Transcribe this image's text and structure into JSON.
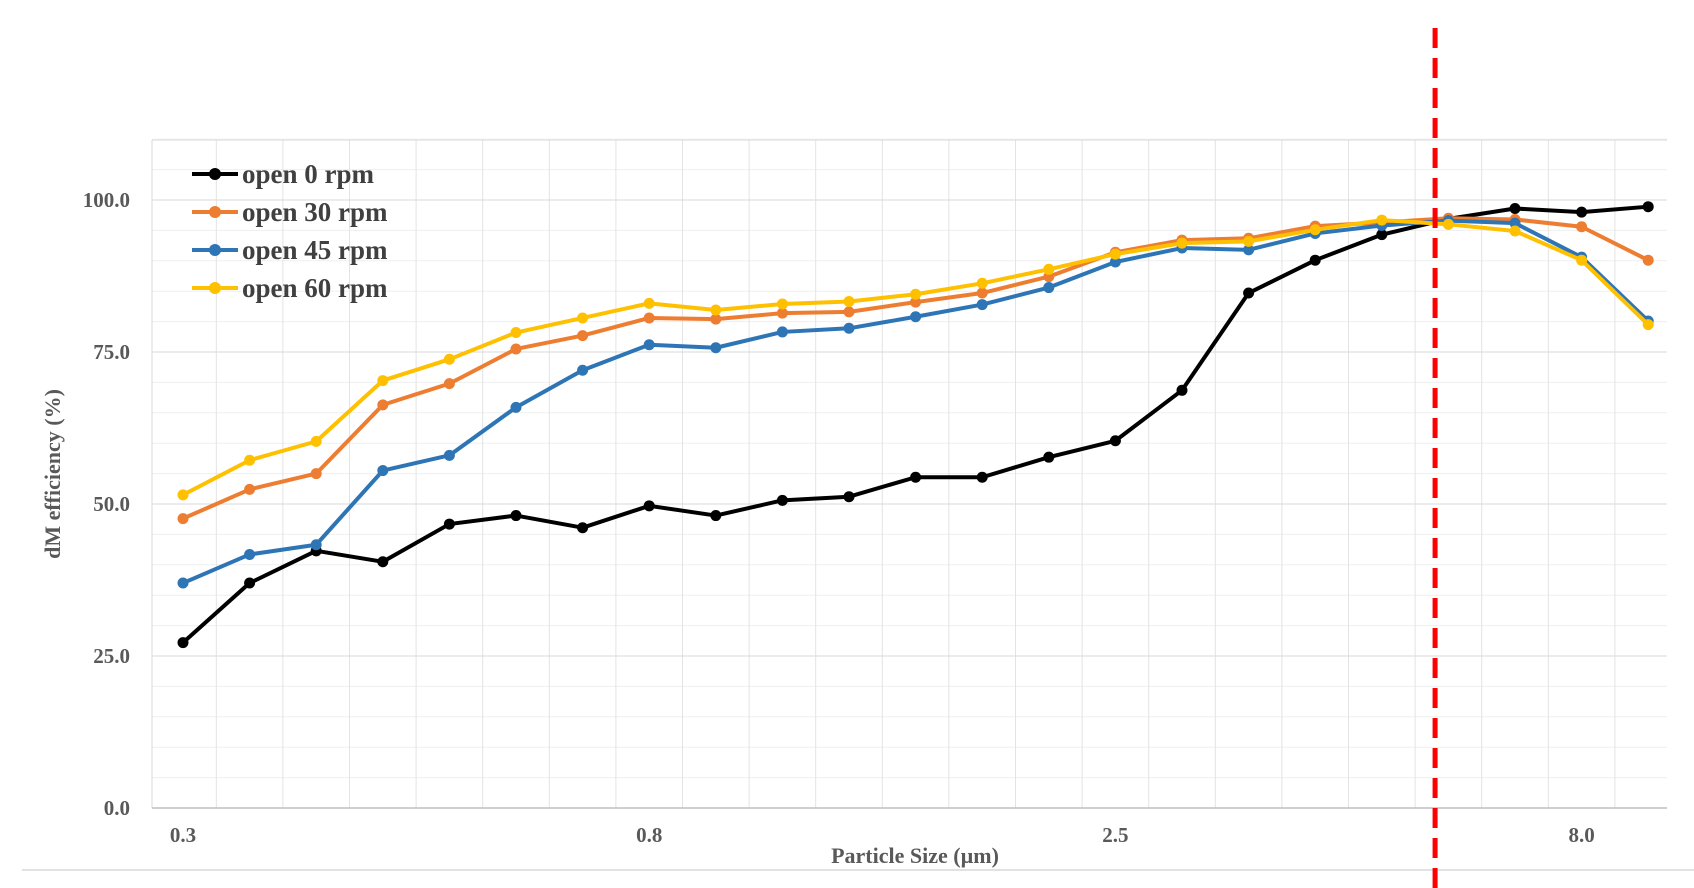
{
  "chart_data": {
    "type": "line",
    "title": "",
    "xlabel": "Particle Size (µm)",
    "ylabel": "dM efficiency (%)",
    "ylim": [
      0,
      110
    ],
    "yticks": [
      "100.0",
      "75.0",
      "50.0",
      "25.0",
      "0.0"
    ],
    "ytick_values": [
      100,
      75,
      50,
      25,
      0
    ],
    "xtick_labels": [
      {
        "label": "0.3",
        "index": 0
      },
      {
        "label": "0.8",
        "index": 7
      },
      {
        "label": "2.5",
        "index": 14
      },
      {
        "label": "8.0",
        "index": 21
      }
    ],
    "n_points": 23,
    "grid": true,
    "legend_position": "top-left",
    "reference_line": {
      "index": 18.8,
      "color": "#FF0000",
      "style": "dashed"
    },
    "series": [
      {
        "name": "open 0 rpm",
        "color": "#000000",
        "values": [
          27.2,
          37.0,
          42.3,
          40.5,
          46.7,
          48.1,
          46.1,
          49.7,
          48.1,
          50.6,
          51.2,
          54.4,
          54.4,
          57.7,
          60.4,
          68.7,
          84.7,
          90.1,
          94.3,
          96.9,
          98.6,
          98.0,
          98.9
        ]
      },
      {
        "name": "open 30 rpm",
        "color": "#ED7D31",
        "values": [
          47.6,
          52.4,
          55.0,
          66.3,
          69.8,
          75.5,
          77.7,
          80.6,
          80.4,
          81.4,
          81.6,
          83.2,
          84.7,
          87.4,
          91.4,
          93.4,
          93.7,
          95.7,
          96.3,
          97.0,
          96.8,
          95.6,
          90.1
        ]
      },
      {
        "name": "open 45 rpm",
        "color": "#2E75B6",
        "values": [
          37.0,
          41.7,
          43.3,
          55.5,
          58.0,
          65.9,
          72.0,
          76.2,
          75.7,
          78.3,
          78.9,
          80.8,
          82.8,
          85.6,
          89.8,
          92.1,
          91.8,
          94.5,
          95.8,
          96.6,
          96.2,
          90.6,
          80.1
        ]
      },
      {
        "name": "open 60 rpm",
        "color": "#FFC000",
        "values": [
          51.5,
          57.2,
          60.3,
          70.3,
          73.8,
          78.2,
          80.6,
          83.0,
          81.9,
          82.9,
          83.3,
          84.5,
          86.3,
          88.6,
          91.1,
          92.9,
          93.2,
          95.1,
          96.7,
          96.0,
          94.9,
          90.1,
          79.5
        ]
      }
    ]
  }
}
